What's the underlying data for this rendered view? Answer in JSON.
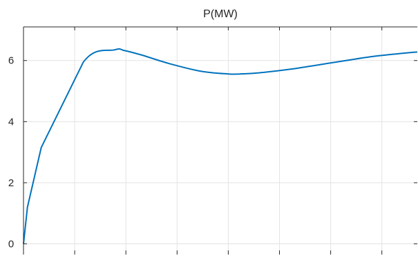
{
  "chart_data": {
    "type": "line",
    "title": "P(MW)",
    "xlabel": "",
    "ylabel": "",
    "ylim": [
      -0.35,
      7.1
    ],
    "xlim": [
      0,
      1
    ],
    "grid": true,
    "y_ticks": [
      0,
      2,
      4,
      6
    ],
    "y_tick_labels": [
      "0",
      "2",
      "4",
      "6"
    ],
    "x_ticks": [
      0,
      0.13,
      0.26,
      0.39,
      0.52,
      0.65,
      0.78,
      0.91
    ],
    "x_tick_labels": [
      "",
      "",
      "",
      "",
      "",
      "",
      "",
      ""
    ],
    "series": [
      {
        "color": "#0072BD",
        "x": [
          0,
          0.01,
          0.045,
          0.152,
          0.232,
          0.255,
          0.3,
          0.37,
          0.45,
          0.52,
          0.55,
          0.6,
          0.68,
          0.78,
          0.88,
          0.95,
          1.0
        ],
        "y": [
          0,
          1.2,
          3.15,
          5.95,
          6.35,
          6.33,
          6.18,
          5.9,
          5.65,
          5.56,
          5.56,
          5.6,
          5.72,
          5.92,
          6.12,
          6.22,
          6.28
        ]
      }
    ]
  }
}
